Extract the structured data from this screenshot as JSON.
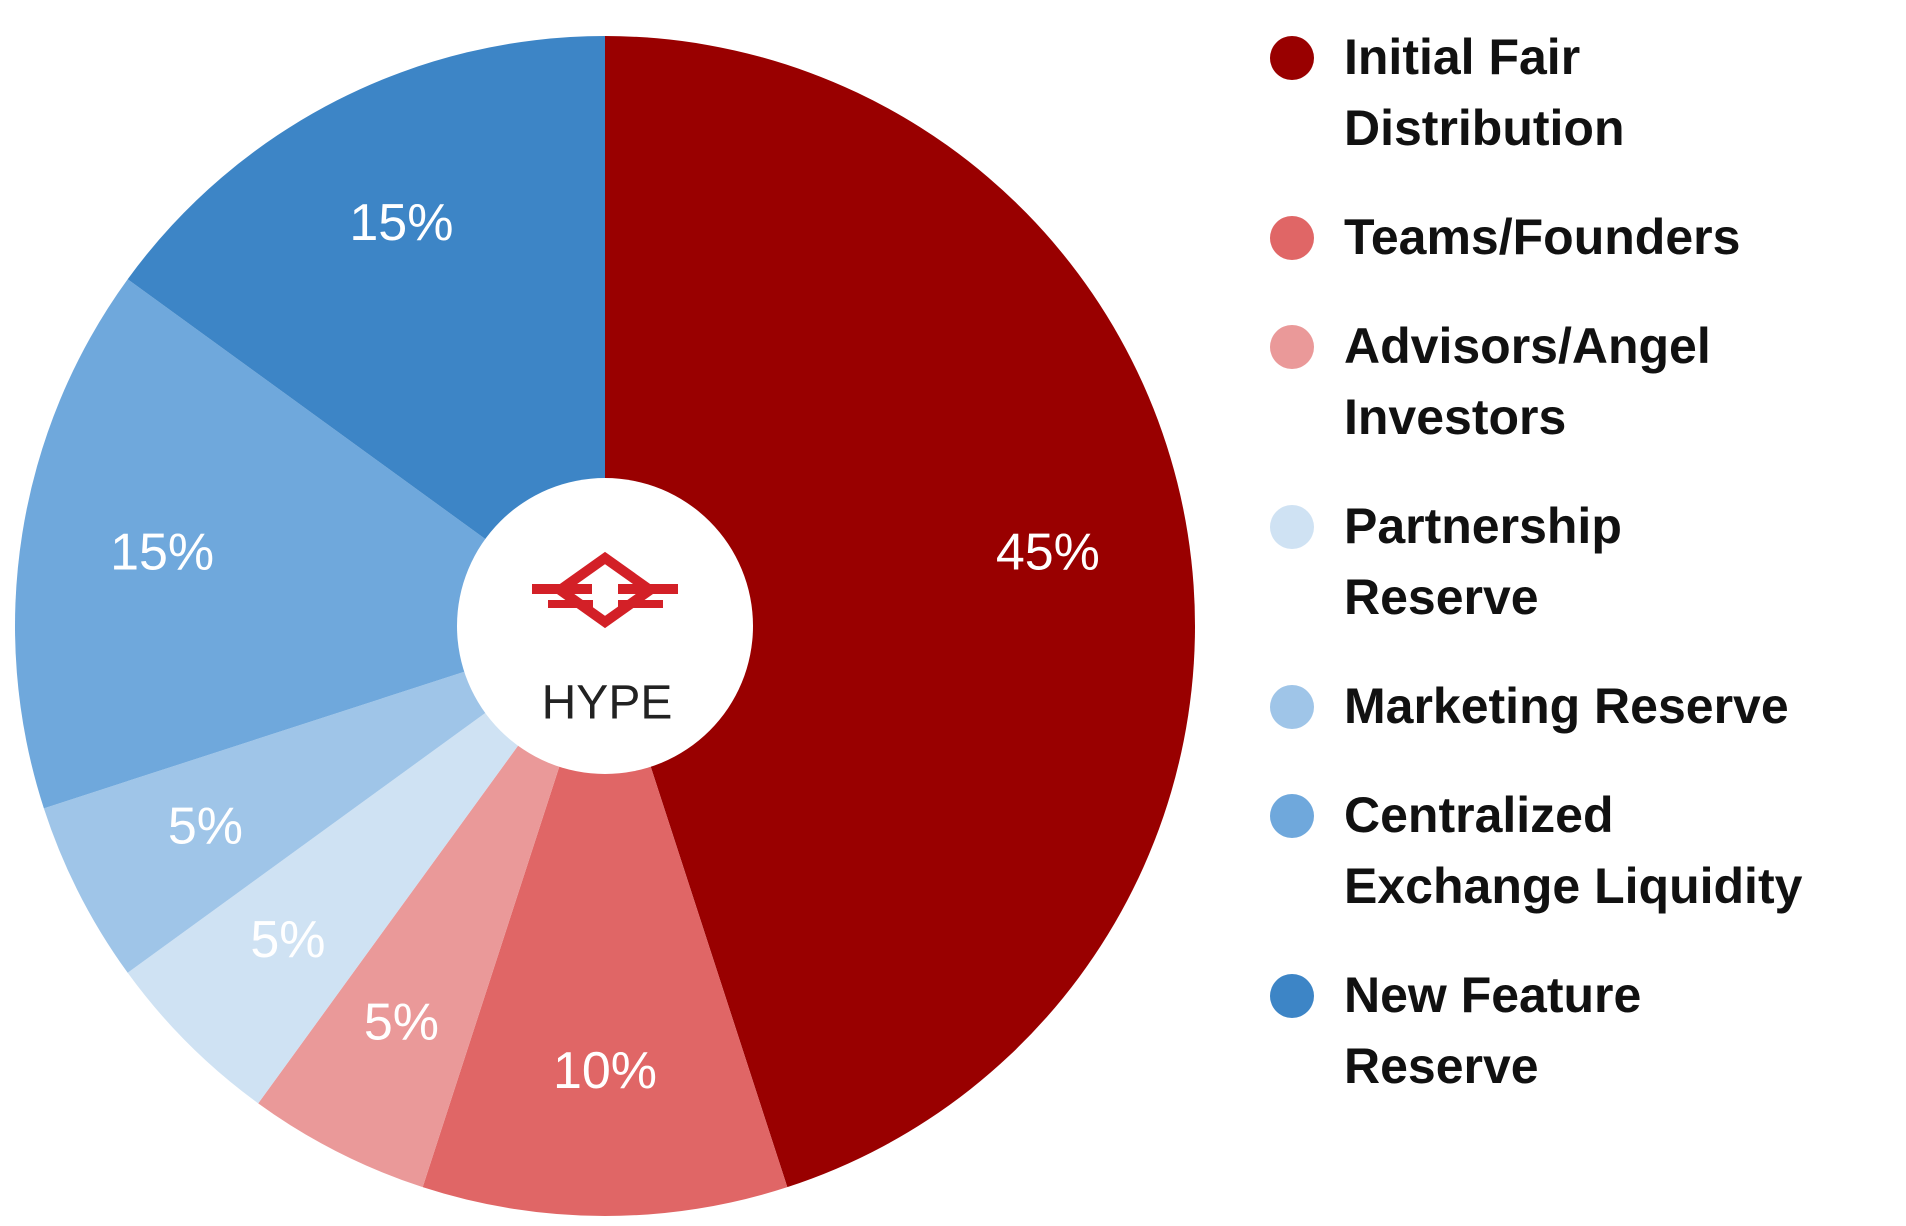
{
  "chart_data": {
    "type": "pie",
    "categories": [
      "Initial Fair\nDistribution",
      "Teams/Founders",
      "Advisors/Angel\nInvestors",
      "Partnership\nReserve",
      "Marketing Reserve",
      "Centralized\nExchange Liquidity",
      "New Feature\nReserve"
    ],
    "values": [
      45,
      10,
      5,
      5,
      5,
      15,
      15
    ],
    "value_labels": [
      "45%",
      "10%",
      "5%",
      "5%",
      "5%",
      "15%",
      "15%"
    ],
    "colors": [
      "#990000",
      "#e06666",
      "#ea9999",
      "#cfe2f3",
      "#9fc5e8",
      "#6fa8dc",
      "#3d85c6"
    ],
    "center_label": "HYPE",
    "legend": "right"
  }
}
